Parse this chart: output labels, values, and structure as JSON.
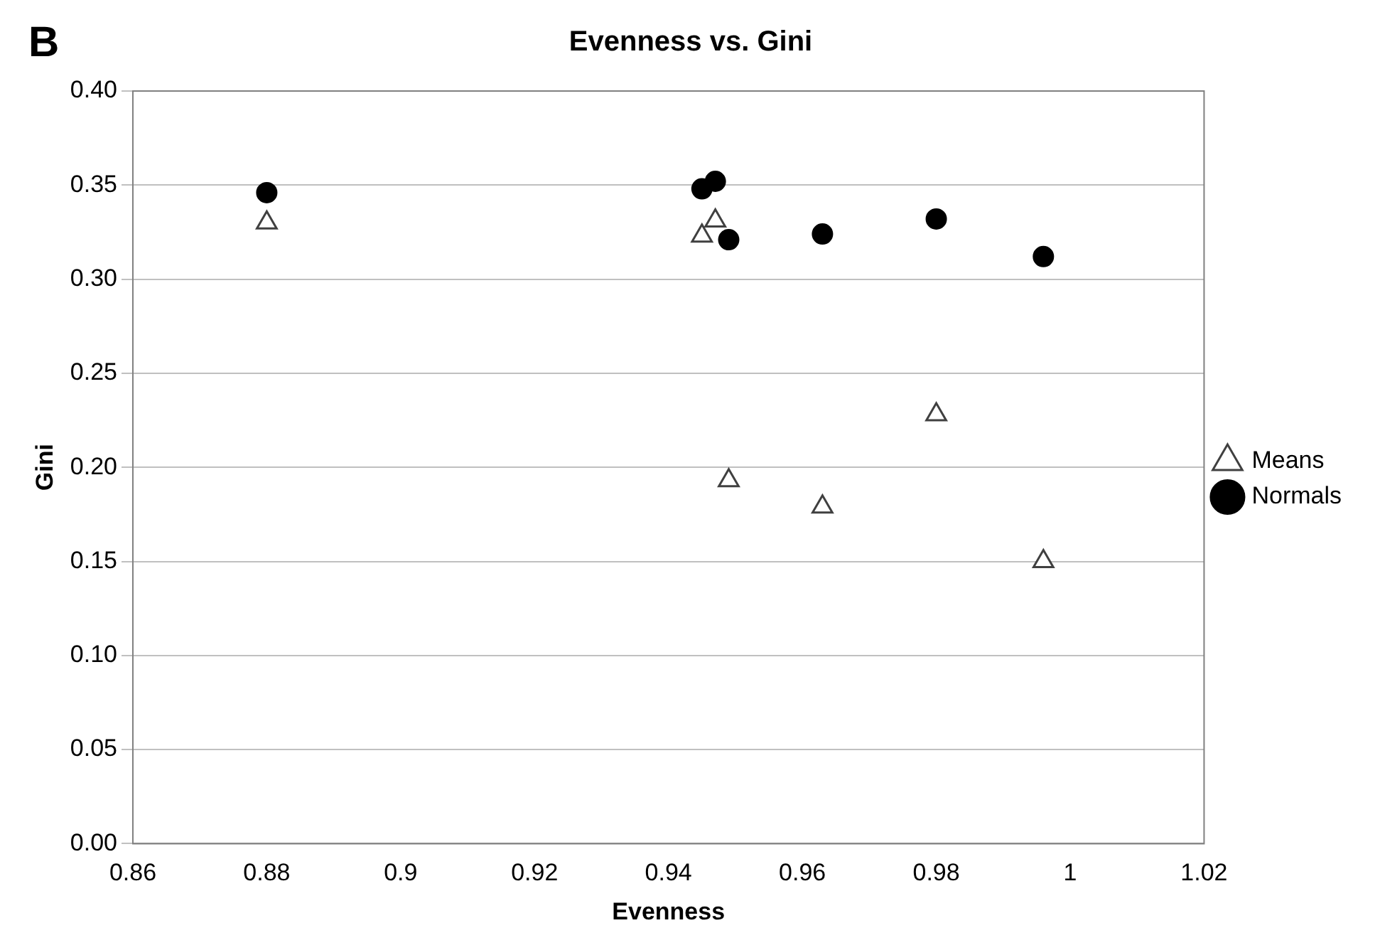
{
  "chart_data": {
    "type": "scatter",
    "title": "Evenness vs. Gini",
    "xlabel": "Evenness",
    "ylabel": "Gini",
    "annotations": [
      "B"
    ],
    "xlim": [
      0.86,
      1.02
    ],
    "xticks": [
      0.86,
      0.88,
      {
        "value": 0.9,
        "label": "0.9"
      },
      0.92,
      0.94,
      0.96,
      0.98,
      {
        "value": 1,
        "label": "1"
      },
      1.02
    ],
    "ylim": [
      0,
      0.4
    ],
    "yticks": [
      {
        "value": 0,
        "label": "0.00"
      },
      0.05,
      {
        "value": 0.1,
        "label": "0.10"
      },
      0.15,
      {
        "value": 0.2,
        "label": "0.20"
      },
      0.25,
      {
        "value": 0.3,
        "label": "0.30"
      },
      0.35,
      {
        "value": 0.4,
        "label": "0.40"
      }
    ],
    "grid": "y",
    "legend": "right",
    "series": [
      {
        "name": "Means",
        "color": "#404040",
        "marker": "triangle",
        "x": [
          0.88,
          0.945,
          0.947,
          0.949,
          0.963,
          0.98,
          0.996
        ],
        "values": [
          0.33,
          0.323,
          0.331,
          0.193,
          0.179,
          0.228,
          0.15
        ]
      },
      {
        "name": "Normals",
        "color": "#000000",
        "marker": "circle",
        "x": [
          0.88,
          0.945,
          0.947,
          0.949,
          0.963,
          0.98,
          0.996
        ],
        "values": [
          0.346,
          0.348,
          0.352,
          0.321,
          0.324,
          0.332,
          0.312
        ]
      }
    ]
  }
}
